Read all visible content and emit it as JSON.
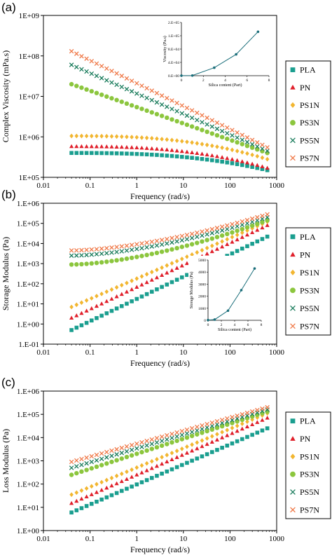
{
  "chart_data": [
    {
      "type": "scatter",
      "panel": "(a)",
      "title": "",
      "xlabel": "Frequency (rad/s)",
      "ylabel": "Complex Viscosity (mPa.s)",
      "xscale": "log",
      "yscale": "log",
      "xlim": [
        0.01,
        1000
      ],
      "ylim": [
        100000,
        1000000000
      ],
      "xticks": [
        "0.01",
        "0.1",
        "1",
        "10",
        "100",
        "1000"
      ],
      "yticks": [
        "1E+05",
        "1E+06",
        "1E+07",
        "1E+08",
        "1E+09"
      ],
      "legend_position": "right",
      "grid": false,
      "series": [
        {
          "name": "PLA",
          "marker": "square",
          "color": "#1a9e8f",
          "y_start": 400000,
          "y_end": 150000,
          "curve": "plateau"
        },
        {
          "name": "PN",
          "marker": "triangle",
          "color": "#e0202b",
          "y_start": 580000,
          "y_end": 170000,
          "curve": "plateau"
        },
        {
          "name": "PS1N",
          "marker": "diamond",
          "color": "#f2b630",
          "y_start": 1050000,
          "y_end": 280000,
          "curve": "plateau"
        },
        {
          "name": "PS3N",
          "marker": "circle",
          "color": "#8cc63e",
          "y_start": 20000000,
          "y_end": 400000,
          "curve": "power"
        },
        {
          "name": "PS5N",
          "marker": "x",
          "color": "#1a7c5c",
          "y_start": 60000000,
          "y_end": 450000,
          "curve": "power"
        },
        {
          "name": "PS7N",
          "marker": "x",
          "color": "#f07a4a",
          "y_start": 130000000,
          "y_end": 550000,
          "curve": "power"
        }
      ],
      "inset": {
        "type": "line",
        "xlabel": "Silica content (Part)",
        "ylabel": "Viscosity (Pa.s)",
        "xlim": [
          0,
          8
        ],
        "ylim": [
          0,
          200000
        ],
        "xticks": [
          "0",
          "2",
          "4",
          "6",
          "8"
        ],
        "yticks": [
          "0.E+00",
          "4.E+04",
          "8.E+04",
          "1.E+05",
          "2.E+05"
        ],
        "x": [
          0,
          1,
          3,
          5,
          7
        ],
        "y": [
          300,
          600,
          30000,
          80000,
          165000
        ]
      }
    },
    {
      "type": "scatter",
      "panel": "(b)",
      "title": "",
      "xlabel": "Frequency (rad/s)",
      "ylabel": "Storage Modulus (Pa)",
      "xscale": "log",
      "yscale": "log",
      "xlim": [
        0.01,
        1000
      ],
      "ylim": [
        0.1,
        1000000
      ],
      "xticks": [
        "0.01",
        "0.1",
        "1",
        "10",
        "100",
        "1000"
      ],
      "yticks": [
        "1.E-01",
        "1.E+00",
        "1.E+01",
        "1.E+02",
        "1.E+03",
        "1.E+04",
        "1.E+05",
        "1.E+06"
      ],
      "legend_position": "right",
      "grid": false,
      "series": [
        {
          "name": "PLA",
          "marker": "square",
          "color": "#1a9e8f",
          "y_start": 0.5,
          "y_end": 22000,
          "curve": "power"
        },
        {
          "name": "PN",
          "marker": "triangle",
          "color": "#e0202b",
          "y_start": 2,
          "y_end": 80000,
          "curve": "power"
        },
        {
          "name": "PS1N",
          "marker": "diamond",
          "color": "#f2b630",
          "y_start": 7,
          "y_end": 120000,
          "curve": "power"
        },
        {
          "name": "PS3N",
          "marker": "circle",
          "color": "#8cc63e",
          "y_start": 900,
          "y_end": 140000,
          "curve": "rise"
        },
        {
          "name": "PS5N",
          "marker": "x",
          "color": "#1a7c5c",
          "y_start": 2500,
          "y_end": 200000,
          "curve": "rise"
        },
        {
          "name": "PS7N",
          "marker": "x",
          "color": "#f07a4a",
          "y_start": 4500,
          "y_end": 280000,
          "curve": "rise"
        }
      ],
      "inset": {
        "type": "line",
        "xlabel": "Silica content (Part)",
        "ylabel": "Storage Modulus (Pa)",
        "xlim": [
          0,
          8
        ],
        "ylim": [
          0,
          5000
        ],
        "xticks": [
          "0",
          "2",
          "4",
          "6",
          "8"
        ],
        "yticks": [
          "0",
          "1000",
          "2000",
          "3000",
          "4000",
          "5000"
        ],
        "x": [
          0,
          1,
          3,
          5,
          7
        ],
        "y": [
          20,
          60,
          800,
          2500,
          4300
        ]
      }
    },
    {
      "type": "scatter",
      "panel": "(c)",
      "title": "",
      "xlabel": "Frequency (rad/s)",
      "ylabel": "Loss Modulus (Pa)",
      "xscale": "log",
      "yscale": "log",
      "xlim": [
        0.01,
        1000
      ],
      "ylim": [
        1,
        1000000
      ],
      "xticks": [
        "0.01",
        "0.1",
        "1",
        "10",
        "100",
        "1000"
      ],
      "yticks": [
        "1.E+00",
        "1.E+01",
        "1.E+02",
        "1.E+03",
        "1.E+04",
        "1.E+05",
        "1.E+06"
      ],
      "legend_position": "right",
      "grid": false,
      "series": [
        {
          "name": "PLA",
          "marker": "square",
          "color": "#1a9e8f",
          "y_start": 6,
          "y_end": 25000,
          "curve": "power"
        },
        {
          "name": "PN",
          "marker": "triangle",
          "color": "#e0202b",
          "y_start": 15,
          "y_end": 70000,
          "curve": "power"
        },
        {
          "name": "PS1N",
          "marker": "diamond",
          "color": "#f2b630",
          "y_start": 35,
          "y_end": 110000,
          "curve": "power"
        },
        {
          "name": "PS3N",
          "marker": "circle",
          "color": "#8cc63e",
          "y_start": 250,
          "y_end": 130000,
          "curve": "power"
        },
        {
          "name": "PS5N",
          "marker": "x",
          "color": "#1a7c5c",
          "y_start": 500,
          "y_end": 160000,
          "curve": "power"
        },
        {
          "name": "PS7N",
          "marker": "x",
          "color": "#f07a4a",
          "y_start": 900,
          "y_end": 200000,
          "curve": "power"
        }
      ]
    }
  ]
}
